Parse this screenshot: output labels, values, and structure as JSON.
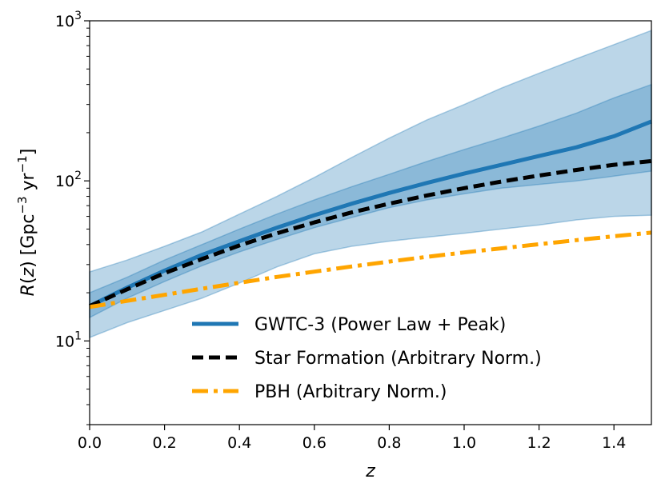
{
  "chart_data": {
    "type": "line",
    "title": "",
    "xlabel": "z",
    "ylabel": "R(z) [Gpc^-3 yr^-1]",
    "ylabel_parts": {
      "pre": "R",
      "paren_open": "(",
      "var": "z",
      "paren_close": ")",
      "unit_open": " [Gpc",
      "exp1": "−3",
      "mid": " yr",
      "exp2": "−1",
      "unit_close": "]"
    },
    "xlim": [
      0.0,
      1.5
    ],
    "ylim": [
      3,
      1000
    ],
    "yscale": "log",
    "xticks": [
      0.0,
      0.2,
      0.4,
      0.6,
      0.8,
      1.0,
      1.2,
      1.4
    ],
    "xtick_labels": [
      "0.0",
      "0.2",
      "0.4",
      "0.6",
      "0.8",
      "1.0",
      "1.2",
      "1.4"
    ],
    "yticks": [
      {
        "value": 10,
        "base": "10",
        "exp": "1"
      },
      {
        "value": 100,
        "base": "10",
        "exp": "2"
      },
      {
        "value": 1000,
        "base": "10",
        "exp": "3"
      }
    ],
    "grid": false,
    "legend_position": "lower-right",
    "x": [
      0.0,
      0.1,
      0.2,
      0.3,
      0.4,
      0.5,
      0.6,
      0.7,
      0.8,
      0.9,
      1.0,
      1.1,
      1.2,
      1.3,
      1.4,
      1.5
    ],
    "series": [
      {
        "name": "GWTC-3 (Power Law + Peak)",
        "color": "#1f77b4",
        "style": "solid",
        "values": [
          16.5,
          21.5,
          27.5,
          34.5,
          42,
          51,
          61,
          72,
          84,
          97,
          111,
          126,
          143,
          162,
          190,
          235
        ],
        "band_50": {
          "lower": [
            14,
            18.5,
            23.5,
            29.5,
            36,
            43,
            51,
            59,
            68,
            76,
            83,
            90,
            95,
            100,
            107,
            115
          ],
          "upper": [
            20,
            25,
            32,
            40,
            50,
            62,
            76,
            92,
            110,
            132,
            157,
            185,
            220,
            265,
            330,
            400
          ]
        },
        "band_90": {
          "lower": [
            10.5,
            13,
            15.5,
            18.5,
            23,
            29,
            35,
            39,
            42,
            44.5,
            47,
            50,
            53,
            57,
            60,
            61
          ],
          "upper": [
            27,
            32,
            39,
            48,
            62,
            80,
            105,
            140,
            185,
            240,
            300,
            380,
            470,
            580,
            710,
            870
          ]
        }
      },
      {
        "name": "Star Formation (Arbitrary Norm.)",
        "color": "#000000",
        "style": "dashed",
        "values": [
          16.5,
          21,
          26.5,
          32.5,
          39.5,
          47,
          55,
          63.5,
          72,
          81,
          90,
          99,
          108,
          117,
          126,
          133
        ]
      },
      {
        "name": "PBH (Arbitrary Norm.)",
        "color": "#ffa500",
        "style": "dashdot",
        "values": [
          16.3,
          17.8,
          19.4,
          21.2,
          23.1,
          25.1,
          27.1,
          29.2,
          31.3,
          33.5,
          35.7,
          37.9,
          40.2,
          42.6,
          45.1,
          47.5
        ]
      }
    ]
  }
}
